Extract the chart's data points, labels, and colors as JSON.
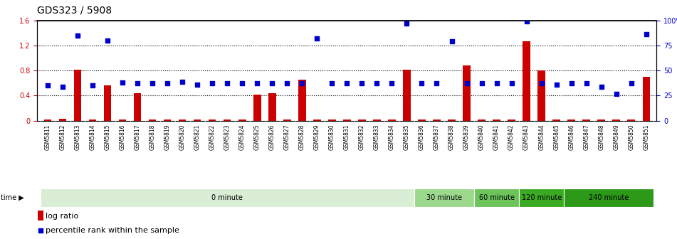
{
  "title": "GDS323 / 5908",
  "samples": [
    "GSM5811",
    "GSM5812",
    "GSM5813",
    "GSM5814",
    "GSM5815",
    "GSM5816",
    "GSM5817",
    "GSM5818",
    "GSM5819",
    "GSM5820",
    "GSM5821",
    "GSM5822",
    "GSM5823",
    "GSM5824",
    "GSM5825",
    "GSM5826",
    "GSM5827",
    "GSM5828",
    "GSM5829",
    "GSM5830",
    "GSM5831",
    "GSM5832",
    "GSM5833",
    "GSM5834",
    "GSM5835",
    "GSM5836",
    "GSM5837",
    "GSM5838",
    "GSM5839",
    "GSM5840",
    "GSM5841",
    "GSM5842",
    "GSM5843",
    "GSM5844",
    "GSM5845",
    "GSM5846",
    "GSM5847",
    "GSM5848",
    "GSM5849",
    "GSM5850",
    "GSM5851"
  ],
  "log_ratio": [
    0.02,
    0.03,
    0.81,
    0.02,
    0.56,
    0.02,
    0.44,
    0.02,
    0.02,
    0.02,
    0.02,
    0.02,
    0.02,
    0.02,
    0.42,
    0.44,
    0.02,
    0.65,
    0.02,
    0.02,
    0.02,
    0.02,
    0.02,
    0.02,
    0.81,
    0.02,
    0.02,
    0.02,
    0.88,
    0.02,
    0.02,
    0.02,
    1.27,
    0.8,
    0.02,
    0.02,
    0.02,
    0.02,
    0.02,
    0.02,
    0.7
  ],
  "percentile_pct": [
    35,
    34,
    85,
    35,
    80,
    38,
    37,
    37,
    37,
    39,
    36,
    37,
    37,
    37,
    37,
    37,
    37,
    37,
    82,
    37,
    37,
    37,
    37,
    37,
    97,
    37,
    37,
    79,
    37,
    37,
    37,
    37,
    99,
    37,
    36,
    37,
    37,
    34,
    27,
    37,
    86
  ],
  "ylim_left": [
    0,
    1.6
  ],
  "ylim_right": [
    0,
    100
  ],
  "yticks_left": [
    0,
    0.4,
    0.8,
    1.2,
    1.6
  ],
  "ytick_labels_left": [
    "0",
    "0.4",
    "0.8",
    "1.2",
    "1.6"
  ],
  "yticks_right": [
    0,
    25,
    50,
    75,
    100
  ],
  "ytick_labels_right": [
    "0",
    "25",
    "50",
    "75",
    "100%"
  ],
  "time_bands": [
    {
      "label": "0 minute",
      "start": 0,
      "end": 24,
      "color": "#d9eed4"
    },
    {
      "label": "30 minute",
      "start": 25,
      "end": 28,
      "color": "#9dd98d"
    },
    {
      "label": "60 minute",
      "start": 29,
      "end": 31,
      "color": "#6cc45a"
    },
    {
      "label": "120 minute",
      "start": 32,
      "end": 34,
      "color": "#3aaa22"
    },
    {
      "label": "240 minute",
      "start": 35,
      "end": 40,
      "color": "#2d9918"
    }
  ],
  "bar_color": "#cc0000",
  "dot_color": "#0000cc",
  "background_color": "#ffffff",
  "left_axis_color": "#cc0000",
  "right_axis_color": "#0000cc",
  "title_fontsize": 10,
  "tick_fontsize": 7,
  "label_fontsize": 5.5,
  "legend_fontsize": 8,
  "timebar_fontsize": 7
}
